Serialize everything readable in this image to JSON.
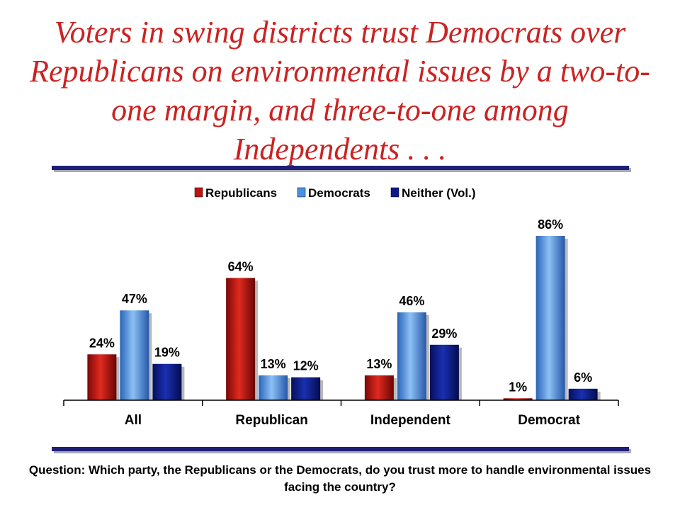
{
  "title": "Voters in swing districts trust Democrats over Republicans on environmental issues by a two-to-one margin, and three-to-one among Independents . . .",
  "question": "Question: Which party, the Republicans or the Democrats, do you trust more to handle environmental issues facing the country?",
  "chart_data": {
    "type": "bar",
    "title": "",
    "xlabel": "",
    "ylabel": "",
    "ylim": [
      0,
      100
    ],
    "grid": false,
    "legend_position": "top-center",
    "categories": [
      "All",
      "Republican",
      "Independent",
      "Democrat"
    ],
    "series": [
      {
        "name": "Republicans",
        "values": [
          24,
          64,
          13,
          1
        ],
        "labels": [
          "24%",
          "64%",
          "13%",
          "1%"
        ],
        "color": "#c0140f"
      },
      {
        "name": "Democrats",
        "values": [
          47,
          13,
          46,
          86
        ],
        "labels": [
          "47%",
          "13%",
          "46%",
          "86%"
        ],
        "color": "#4a90e2"
      },
      {
        "name": "Neither (Vol.)",
        "values": [
          19,
          12,
          29,
          6
        ],
        "labels": [
          "19%",
          "12%",
          "29%",
          "6%"
        ],
        "color": "#0a1a8c"
      }
    ]
  }
}
